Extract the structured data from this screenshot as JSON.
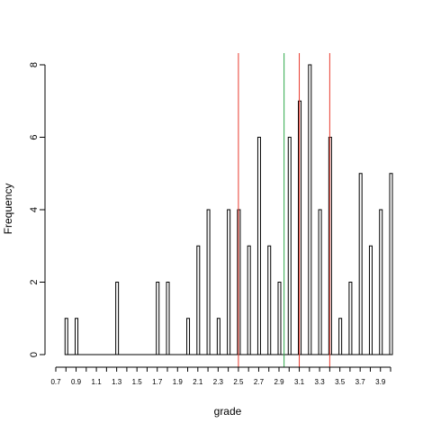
{
  "chart_data": {
    "type": "bar",
    "title": "",
    "xlabel": "grade",
    "ylabel": "Frequency",
    "xlim": [
      0.7,
      4.0
    ],
    "ylim": [
      0,
      8
    ],
    "yticks": [
      0,
      2,
      4,
      6,
      8
    ],
    "xticks": [
      0.7,
      0.8,
      0.9,
      1.0,
      1.1,
      1.2,
      1.3,
      1.4,
      1.5,
      1.6,
      1.7,
      1.8,
      1.9,
      2.0,
      2.1,
      2.2,
      2.3,
      2.4,
      2.5,
      2.6,
      2.7,
      2.8,
      2.9,
      3.0,
      3.1,
      3.2,
      3.3,
      3.4,
      3.5,
      3.6,
      3.7,
      3.8,
      3.9,
      4.0
    ],
    "xtick_labels": [
      "0.7",
      "0.9",
      "1.1",
      "1.3",
      "1.5",
      "1.7",
      "1.9",
      "2.1",
      "2.3",
      "2.5",
      "2.7",
      "2.9",
      "3.1",
      "3.3",
      "3.5",
      "3.7",
      "3.9"
    ],
    "x": [
      0.8,
      0.9,
      1.3,
      1.7,
      1.8,
      2.0,
      2.1,
      2.2,
      2.3,
      2.4,
      2.5,
      2.6,
      2.7,
      2.8,
      2.9,
      3.0,
      3.1,
      3.2,
      3.3,
      3.4,
      3.5,
      3.6,
      3.7,
      3.8,
      3.9,
      4.0
    ],
    "values": [
      1,
      1,
      2,
      2,
      2,
      1,
      3,
      4,
      1,
      4,
      4,
      3,
      6,
      3,
      2,
      6,
      7,
      8,
      4,
      6,
      1,
      2,
      5,
      3,
      4,
      5
    ],
    "grid": false,
    "reference_lines": [
      {
        "x": 2.5,
        "color": "#e8392d"
      },
      {
        "x": 2.95,
        "color": "#2ea84a"
      },
      {
        "x": 3.1,
        "color": "#e8392d"
      },
      {
        "x": 3.4,
        "color": "#e8392d"
      }
    ],
    "colors": {
      "bar_fill": "#ffffff",
      "bar_stroke": "#000000"
    }
  }
}
